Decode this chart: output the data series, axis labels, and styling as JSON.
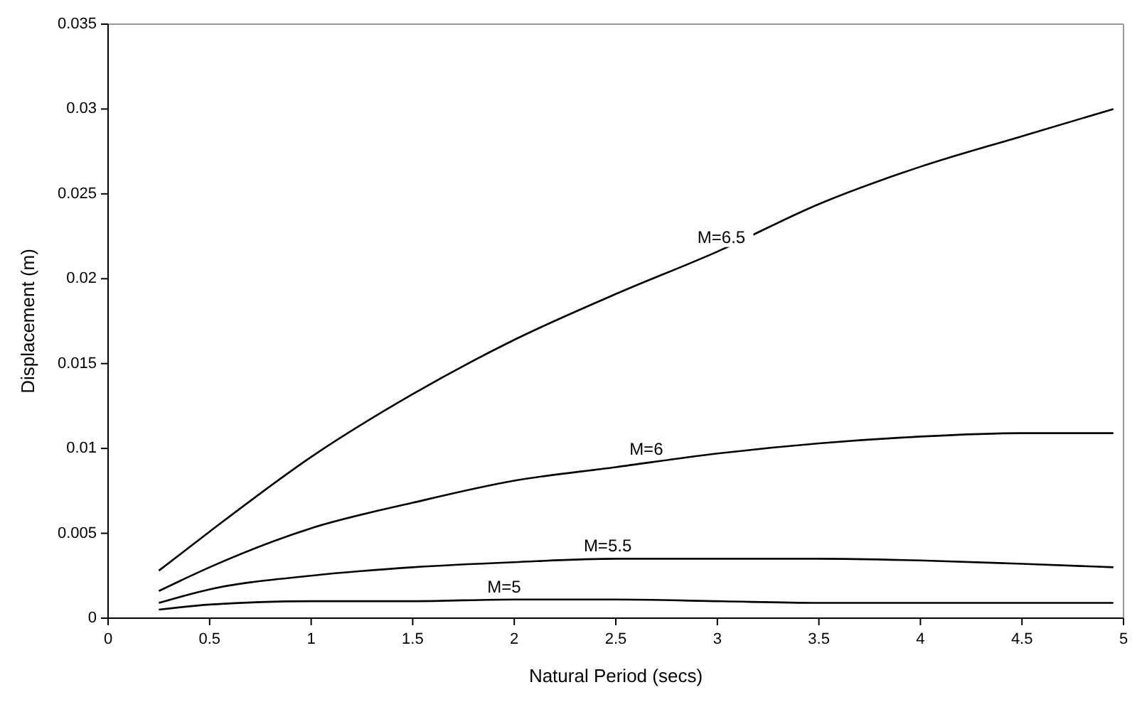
{
  "chart_data": {
    "type": "line",
    "xlabel": "Natural Period (secs)",
    "ylabel": "Displacement (m)",
    "xlim": [
      0,
      5
    ],
    "xticks": [
      0,
      0.5,
      1,
      1.5,
      2,
      2.5,
      3,
      3.5,
      4,
      4.5,
      5
    ],
    "ylim": [
      0,
      0.035
    ],
    "yticks": [
      0,
      0.005,
      0.01,
      0.015,
      0.02,
      0.025,
      0.03,
      0.035
    ],
    "grid": false,
    "marker": "none",
    "line_style": "solid",
    "x": [
      0.25,
      0.5,
      1,
      1.5,
      2,
      2.5,
      3,
      3.5,
      4,
      4.5,
      4.95
    ],
    "series": [
      {
        "color": "#000000",
        "values": [
          0.0028,
          0.0051,
          0.0095,
          0.0132,
          0.0164,
          0.0191,
          0.0216,
          0.0244,
          0.0266,
          0.0284,
          0.03
        ]
      },
      {
        "color": "#000000",
        "values": [
          0.0016,
          0.003,
          0.0053,
          0.0068,
          0.0081,
          0.0089,
          0.0097,
          0.0103,
          0.0107,
          0.0109,
          0.0109
        ]
      },
      {
        "color": "#000000",
        "values": [
          0.0009,
          0.0017,
          0.0025,
          0.003,
          0.0033,
          0.0035,
          0.0035,
          0.0035,
          0.0034,
          0.0032,
          0.003
        ]
      },
      {
        "color": "#000000",
        "values": [
          0.0005,
          0.0008,
          0.001,
          0.001,
          0.0011,
          0.0011,
          0.001,
          0.0009,
          0.0009,
          0.0009,
          0.0009
        ]
      }
    ],
    "annotations": [
      {
        "text": "M=6.5",
        "x": 3.02,
        "y": 0.0217
      },
      {
        "text": "M=6",
        "x": 2.65,
        "y": 0.0092
      },
      {
        "text": "M=5.5",
        "x": 2.46,
        "y": 0.0035
      },
      {
        "text": "M=5",
        "x": 1.95,
        "y": 0.0011
      }
    ]
  }
}
